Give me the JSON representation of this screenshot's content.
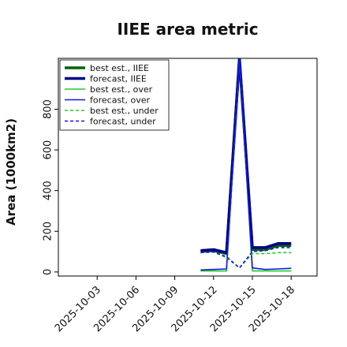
{
  "chart_data": {
    "type": "line",
    "title": "IIEE area metric",
    "xlabel": "",
    "ylabel": "Area (1000km2)",
    "ylim": [
      -20,
      1050
    ],
    "yticks": [
      0,
      200,
      400,
      600,
      800
    ],
    "xlim": [
      "2025-09-30",
      "2025-10-20"
    ],
    "xticks": [
      "2025-10-03",
      "2025-10-06",
      "2025-10-09",
      "2025-10-12",
      "2025-10-15",
      "2025-10-18"
    ],
    "highlighted_xtick": "2025-10-09",
    "highlight_color": "#2e8b2e",
    "grid": false,
    "legend_position": "top-left",
    "x": [
      "2025-10-11",
      "2025-10-12",
      "2025-10-13",
      "2025-10-14",
      "2025-10-15",
      "2025-10-16",
      "2025-10-17",
      "2025-10-18"
    ],
    "series": [
      {
        "name": "best est., IIEE",
        "color": "#006400",
        "style": "solid",
        "weight": "thick",
        "values": [
          100,
          105,
          90,
          1050,
          110,
          110,
          130,
          130
        ]
      },
      {
        "name": "forecast, IIEE",
        "color": "#00008b",
        "style": "solid",
        "weight": "thick",
        "values": [
          105,
          110,
          95,
          1050,
          120,
          120,
          140,
          140
        ]
      },
      {
        "name": "best est., over",
        "color": "#22cc22",
        "style": "solid",
        "weight": "thin",
        "values": [
          5,
          5,
          5,
          1050,
          5,
          5,
          5,
          5
        ]
      },
      {
        "name": "forecast, over",
        "color": "#1515e6",
        "style": "solid",
        "weight": "thin",
        "values": [
          10,
          12,
          15,
          1050,
          20,
          12,
          15,
          18
        ]
      },
      {
        "name": "best est., under",
        "color": "#22cc22",
        "style": "dashed",
        "weight": "thin",
        "values": [
          95,
          98,
          70,
          20,
          90,
          90,
          95,
          95
        ]
      },
      {
        "name": "forecast, under",
        "color": "#1515e6",
        "style": "dashed",
        "weight": "thin",
        "values": [
          95,
          98,
          75,
          20,
          100,
          105,
          120,
          120
        ]
      }
    ]
  }
}
